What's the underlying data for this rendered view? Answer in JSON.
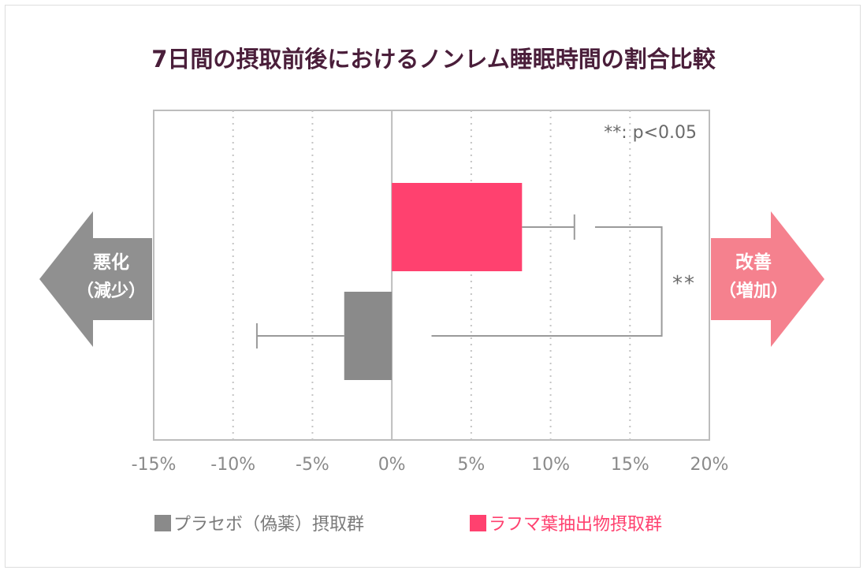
{
  "chart_data": {
    "type": "bar",
    "orientation": "horizontal",
    "title": "7日間の摂取前後におけるノンレム睡眠時間の割合比較",
    "xlabel": "",
    "ylabel": "",
    "x_ticks": [
      "-15%",
      "-10%",
      "-5%",
      "0%",
      "5%",
      "10%",
      "15%",
      "20%"
    ],
    "xlim": [
      -15,
      20
    ],
    "grid": "vertical dotted",
    "legend_position": "bottom",
    "series": [
      {
        "name": "ラフマ葉抽出物摂取群",
        "value": 8.2,
        "error": 3.3,
        "color": "#ff416f"
      },
      {
        "name": "プラセボ（偽薬）摂取群",
        "value": -3.0,
        "error": 5.5,
        "color": "#8a8a8a"
      }
    ],
    "significance": {
      "marker": "**",
      "note": "**: p<0.05"
    },
    "left_arrow": {
      "line1": "悪化",
      "line2": "（減少）",
      "color": "#909090"
    },
    "right_arrow": {
      "line1": "改善",
      "line2": "（増加）",
      "color": "#f5818e"
    }
  }
}
